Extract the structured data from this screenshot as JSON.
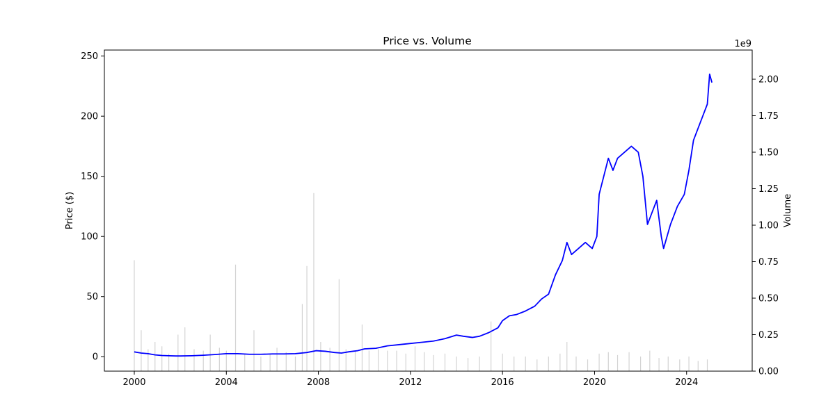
{
  "chart_data": {
    "type": "line",
    "title": "Price vs. Volume",
    "xlabel": "",
    "ylabel": "Price ($)",
    "y2label": "Volume",
    "y2_offset_label": "1e9",
    "xlim": [
      1998.7,
      2026.85
    ],
    "ylim": [
      -12,
      255
    ],
    "y2lim": [
      0,
      2.2
    ],
    "x_ticks": [
      2000,
      2004,
      2008,
      2012,
      2016,
      2020,
      2024
    ],
    "x_tick_labels": [
      "2000",
      "2004",
      "2008",
      "2012",
      "2016",
      "2020",
      "2024"
    ],
    "y_ticks": [
      0,
      50,
      100,
      150,
      200,
      250
    ],
    "y_tick_labels": [
      "0",
      "50",
      "100",
      "150",
      "200",
      "250"
    ],
    "y2_ticks": [
      0,
      0.25,
      0.5,
      0.75,
      1.0,
      1.25,
      1.5,
      1.75,
      2.0
    ],
    "y2_tick_labels": [
      "0.00",
      "0.25",
      "0.50",
      "0.75",
      "1.00",
      "1.25",
      "1.50",
      "1.75",
      "2.00"
    ],
    "grid": false,
    "series": [
      {
        "name": "Price",
        "axis": "left",
        "color": "#0000ff",
        "x": [
          2000.0,
          2000.3,
          2000.6,
          2000.9,
          2001.2,
          2001.5,
          2001.8,
          2002.0,
          2002.5,
          2003.0,
          2003.5,
          2004.0,
          2004.5,
          2005.0,
          2005.5,
          2006.0,
          2006.5,
          2007.0,
          2007.5,
          2007.9,
          2008.3,
          2008.7,
          2009.0,
          2009.3,
          2009.7,
          2010.0,
          2010.5,
          2011.0,
          2011.5,
          2012.0,
          2012.5,
          2013.0,
          2013.5,
          2014.0,
          2014.3,
          2014.7,
          2015.0,
          2015.4,
          2015.8,
          2016.0,
          2016.3,
          2016.6,
          2017.0,
          2017.4,
          2017.7,
          2018.0,
          2018.3,
          2018.6,
          2018.8,
          2019.0,
          2019.3,
          2019.6,
          2019.9,
          2020.1,
          2020.2,
          2020.4,
          2020.6,
          2020.8,
          2021.0,
          2021.3,
          2021.6,
          2021.9,
          2022.1,
          2022.3,
          2022.5,
          2022.7,
          2022.9,
          2023.0,
          2023.3,
          2023.6,
          2023.9,
          2024.1,
          2024.3,
          2024.5,
          2024.7,
          2024.9,
          2025.0,
          2025.1
        ],
        "values": [
          4,
          3,
          2.5,
          1.5,
          1,
          0.8,
          0.6,
          0.6,
          0.8,
          1.2,
          1.8,
          2.5,
          2.5,
          2,
          2,
          2.3,
          2.3,
          2.5,
          3.5,
          5,
          4.5,
          3.5,
          3,
          4,
          5,
          6.5,
          7,
          9,
          10,
          11,
          12,
          13,
          15,
          18,
          17,
          16,
          17,
          20,
          24,
          30,
          34,
          35,
          38,
          42,
          48,
          52,
          68,
          80,
          95,
          85,
          90,
          95,
          90,
          100,
          135,
          150,
          165,
          155,
          165,
          170,
          175,
          170,
          150,
          110,
          120,
          130,
          100,
          90,
          110,
          125,
          135,
          155,
          180,
          190,
          200,
          210,
          235,
          228
        ]
      },
      {
        "name": "Volume",
        "axis": "right",
        "type": "bar",
        "color": "#d3d3d3",
        "x": [
          2000.0,
          2000.3,
          2000.6,
          2000.9,
          2001.2,
          2001.5,
          2001.9,
          2002.2,
          2002.6,
          2003.0,
          2003.3,
          2003.7,
          2004.0,
          2004.4,
          2004.8,
          2005.2,
          2005.5,
          2005.9,
          2006.2,
          2006.6,
          2007.0,
          2007.3,
          2007.5,
          2007.8,
          2008.1,
          2008.5,
          2008.9,
          2009.2,
          2009.6,
          2009.9,
          2010.2,
          2010.6,
          2011.0,
          2011.4,
          2011.8,
          2012.2,
          2012.6,
          2013.0,
          2013.5,
          2014.0,
          2014.5,
          2015.0,
          2015.5,
          2016.0,
          2016.5,
          2017.0,
          2017.5,
          2018.0,
          2018.5,
          2018.8,
          2019.2,
          2019.7,
          2020.2,
          2020.6,
          2021.0,
          2021.5,
          2022.0,
          2022.4,
          2022.8,
          2023.2,
          2023.7,
          2024.1,
          2024.5,
          2024.9
        ],
        "values": [
          0.76,
          0.28,
          0.15,
          0.2,
          0.17,
          0.12,
          0.25,
          0.3,
          0.15,
          0.14,
          0.25,
          0.16,
          0.14,
          0.73,
          0.12,
          0.28,
          0.1,
          0.12,
          0.16,
          0.13,
          0.1,
          0.46,
          0.72,
          1.22,
          0.2,
          0.16,
          0.63,
          0.15,
          0.14,
          0.32,
          0.14,
          0.15,
          0.14,
          0.14,
          0.12,
          0.17,
          0.13,
          0.11,
          0.12,
          0.1,
          0.09,
          0.1,
          0.34,
          0.12,
          0.1,
          0.1,
          0.08,
          0.1,
          0.12,
          0.2,
          0.1,
          0.08,
          0.12,
          0.13,
          0.11,
          0.13,
          0.1,
          0.14,
          0.09,
          0.1,
          0.08,
          0.1,
          0.07,
          0.08
        ]
      }
    ]
  }
}
